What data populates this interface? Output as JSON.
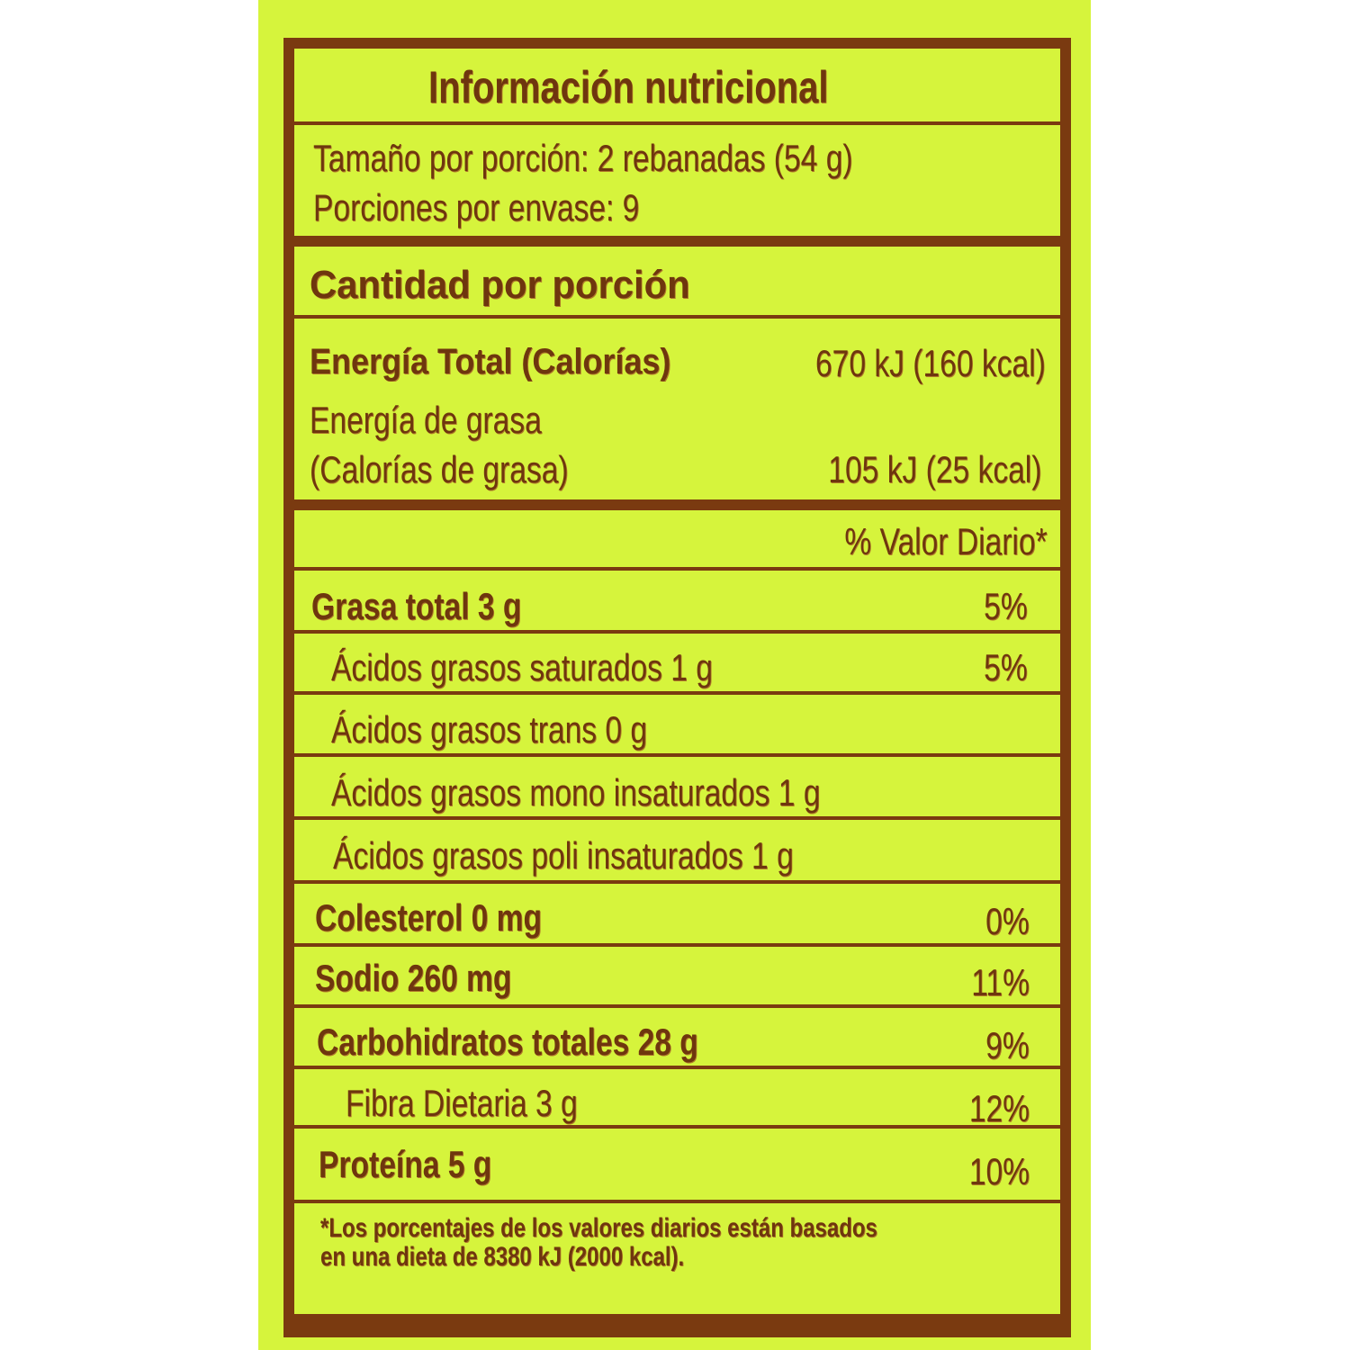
{
  "title": "Información nutricional",
  "serving": {
    "size": "Tamaño por porción:  2 rebanadas (54 g)",
    "per_container": "Porciones por envase:  9"
  },
  "amount_header": "Cantidad por porción",
  "energy": {
    "total_label": "Energía Total (Calorías)",
    "total_value": "670 kJ (160 kcal)",
    "fat_label_1": "Energía de grasa",
    "fat_label_2": "(Calorías de grasa)",
    "fat_value": "105 kJ (25 kcal)"
  },
  "dv_header": "% Valor Diario*",
  "rows": [
    {
      "label": "Grasa total  3 g",
      "dv": "5%"
    },
    {
      "label": "Ácidos grasos saturados 1 g",
      "dv": "5%"
    },
    {
      "label": "Ácidos grasos trans 0 g",
      "dv": ""
    },
    {
      "label": "Ácidos grasos mono insaturados 1 g",
      "dv": ""
    },
    {
      "label": "Ácidos grasos poli insaturados 1 g",
      "dv": ""
    },
    {
      "label": "Colesterol 0 mg",
      "dv": "0%"
    },
    {
      "label": "Sodio  260 mg",
      "dv": "11%"
    },
    {
      "label": "Carbohidratos totales  28 g",
      "dv": "9%"
    },
    {
      "label": "Fibra Dietaria  3 g",
      "dv": "12%"
    },
    {
      "label": "Proteína  5 g",
      "dv": "10%"
    }
  ],
  "footnote": {
    "line1": "*Los porcentajes de los valores diarios están basados",
    "line2": "en una dieta de 8380 kJ (2000 kcal)."
  },
  "colors": {
    "background": "#d6f43c",
    "ink": "#7a3a10"
  }
}
